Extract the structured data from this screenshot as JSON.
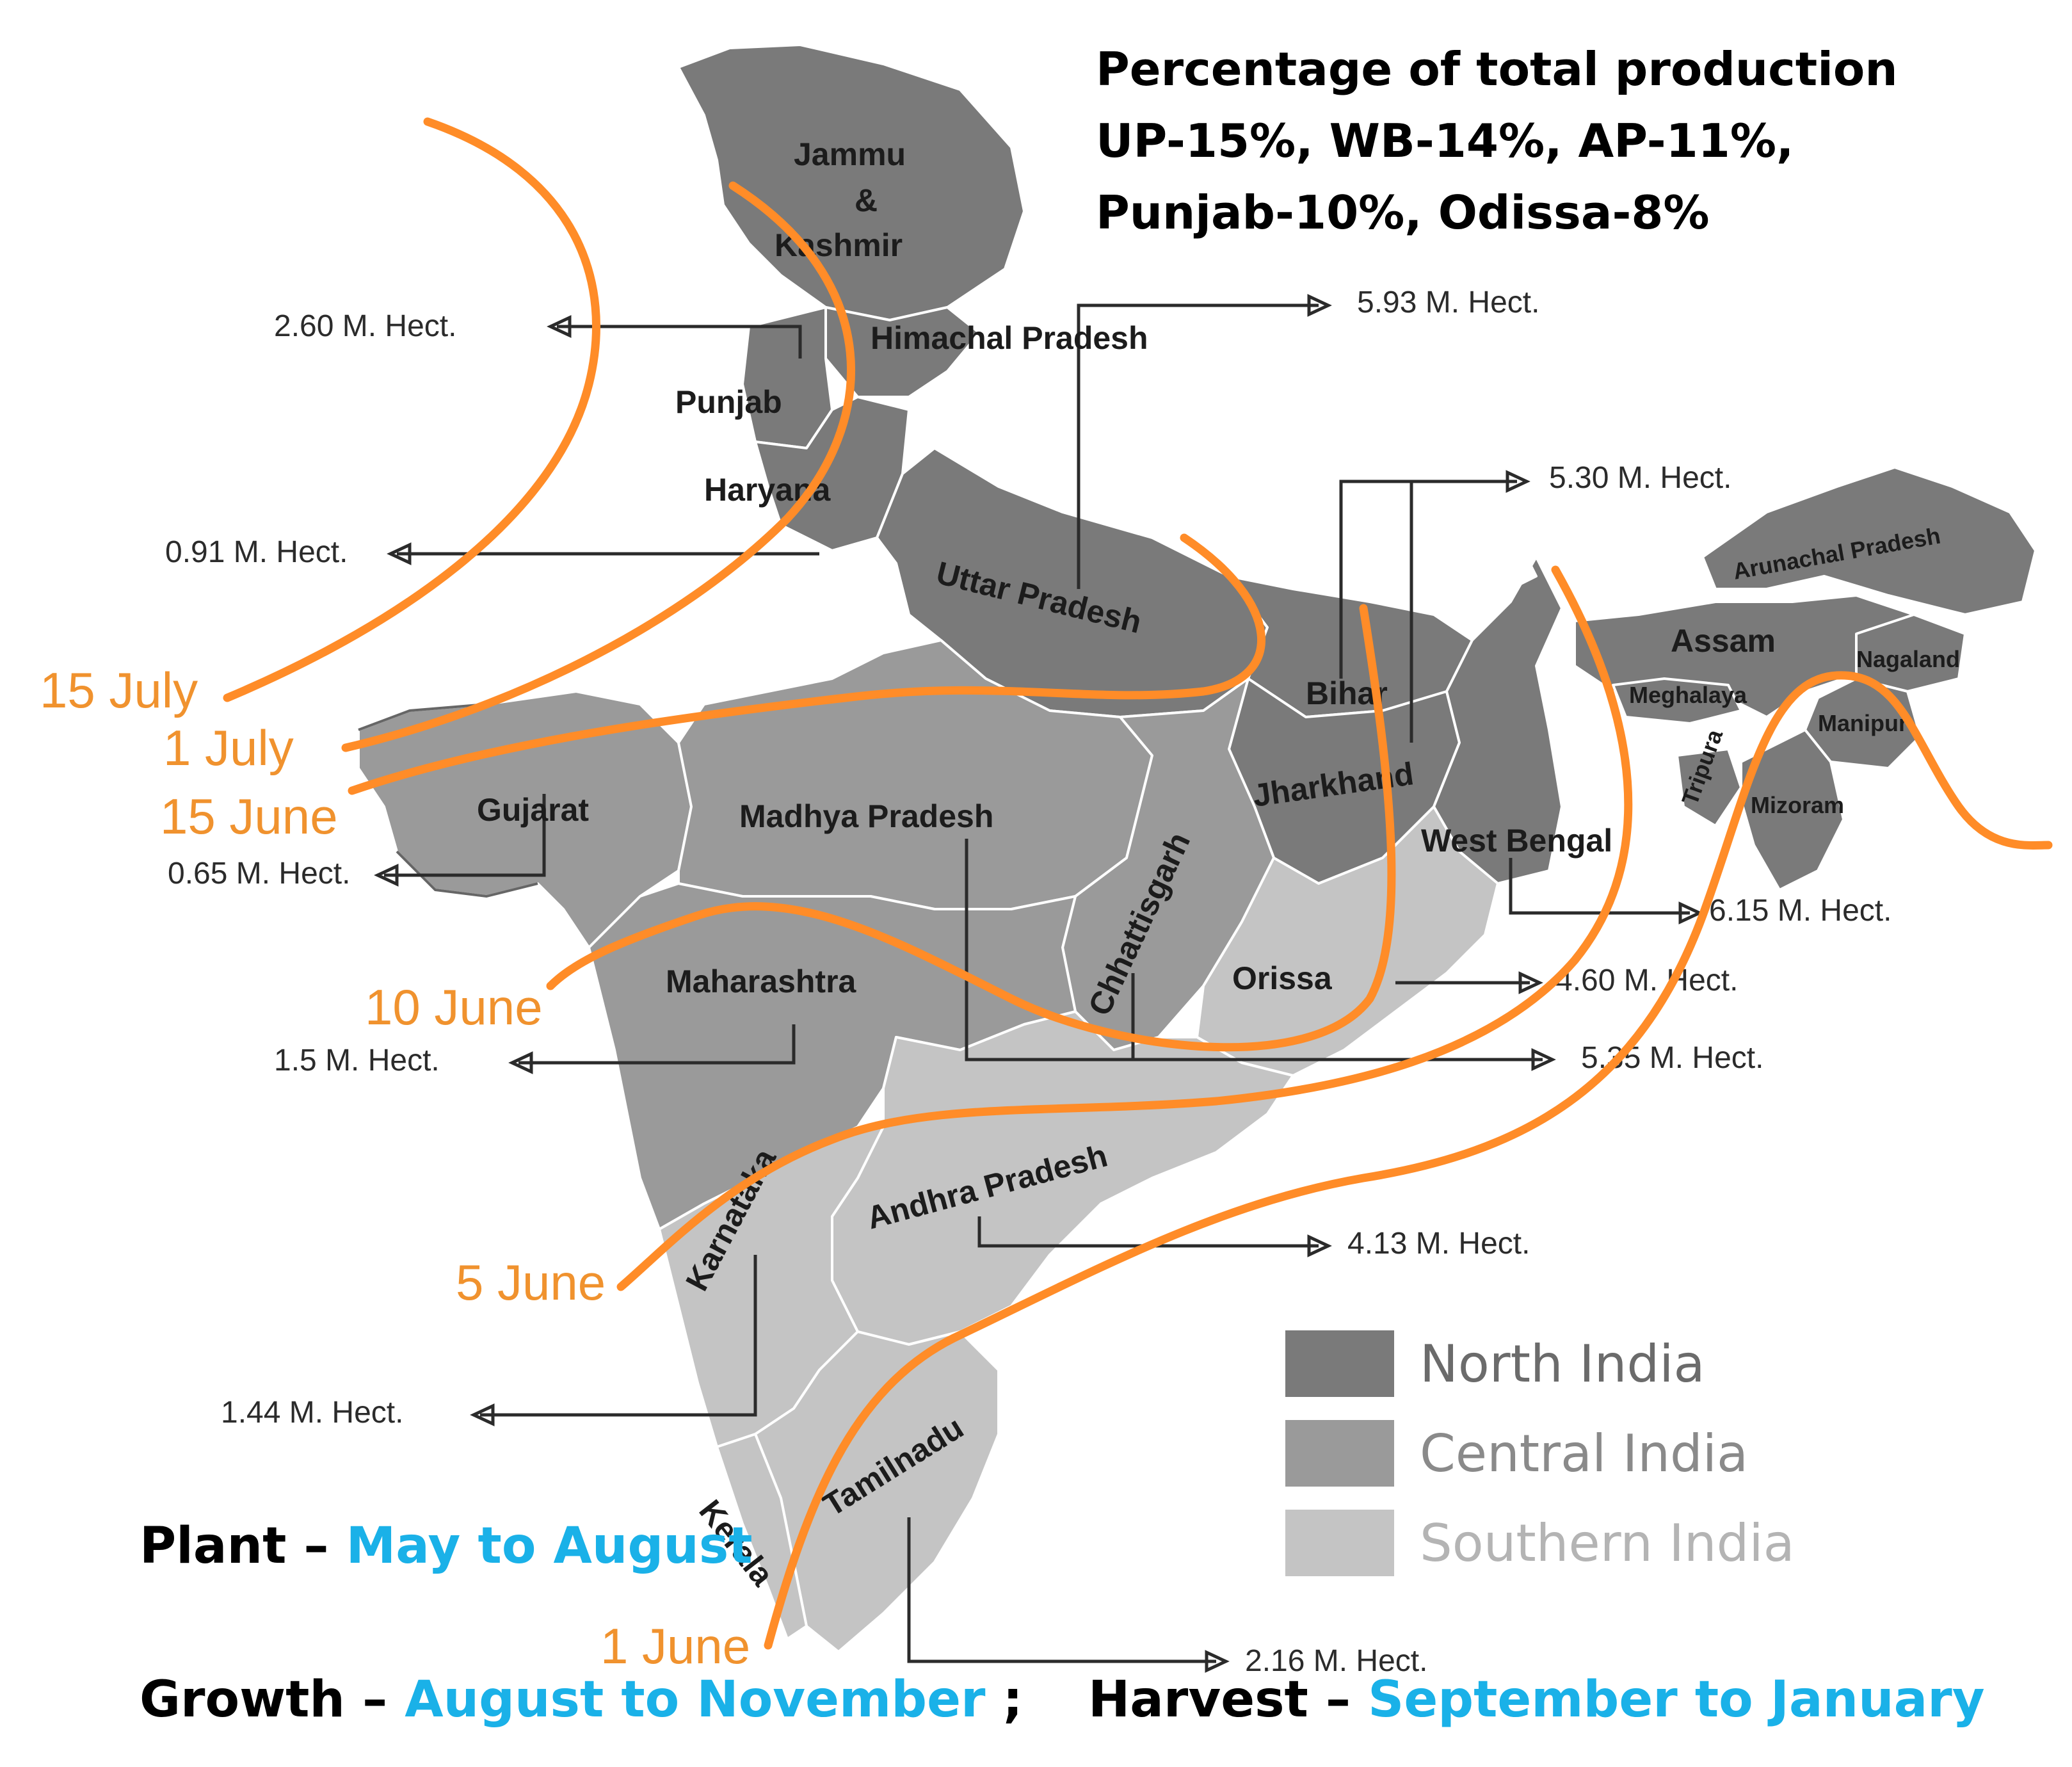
{
  "production_note": {
    "lines": [
      "Percentage of total production",
      "UP-15%, WB-14%, AP-11%,",
      "Punjab-10%,  Odissa-8%"
    ]
  },
  "states": {
    "jammu_kashmir_line1": "Jammu",
    "jammu_kashmir_line2": "&",
    "jammu_kashmir_line3": "Kashmir",
    "himachal": "Himachal Pradesh",
    "punjab": "Punjab",
    "haryana": "Haryana",
    "uttar_pradesh": "Uttar Pradesh",
    "bihar": "Bihar",
    "jharkhand": "Jharkhand",
    "west_bengal": "West Bengal",
    "orissa": "Orissa",
    "chhattisgarh": "Chhattisgarh",
    "madhya_pradesh": "Madhya Pradesh",
    "gujarat": "Gujarat",
    "maharashtra": "Maharashtra",
    "andhra_pradesh": "Andhra Pradesh",
    "karnataka": "Karnataka",
    "tamilnadu": "Tamilnadu",
    "kerala": "Kerala",
    "assam": "Assam",
    "arunachal": "Arunachal Pradesh",
    "meghalaya": "Meghalaya",
    "nagaland": "Nagaland",
    "manipur": "Manipur",
    "mizoram": "Mizoram",
    "tripura": "Tripura"
  },
  "hectares": {
    "punjab": "2.60 M. Hect.",
    "haryana": "0.91 M. Hect.",
    "gujarat": "0.65 M. Hect.",
    "maharashtra": "1.5 M. Hect.",
    "karnataka": "1.44 M. Hect.",
    "uttar_pradesh": "5.93 M. Hect.",
    "bihar_jharkhand": "5.30 M. Hect.",
    "west_bengal": "6.15 M. Hect.",
    "orissa": "4.60 M. Hect.",
    "madhya_pradesh_chhattisgarh": "5.35 M. Hect.",
    "andhra_pradesh": "4.13 M. Hect.",
    "tamilnadu": "2.16 M. Hect."
  },
  "monsoon_onset": {
    "jul15": "15 July",
    "jul1": "1 July",
    "jun15": "15 June",
    "jun10": "10 June",
    "jun5": "5 June",
    "jun1": "1 June"
  },
  "legend": [
    {
      "label": "North India",
      "color": "#7a7a7a"
    },
    {
      "label": "Central India",
      "color": "#9a9a9a"
    },
    {
      "label": "Southern India",
      "color": "#c4c4c4"
    }
  ],
  "seasons": {
    "plant_label": "Plant",
    "plant_sep": " – ",
    "plant_value": "May to August",
    "growth_label": "Growth",
    "growth_sep": " – ",
    "growth_value": "August to November",
    "growth_end": " ;",
    "harvest_label": "Harvest",
    "harvest_sep": " – ",
    "harvest_value": "September to January"
  },
  "colors": {
    "north": "#7a7a7a",
    "central": "#9a9a9a",
    "southern": "#c4c4c4",
    "onset_line": "#ff8c28",
    "onset_text": "#f0922e",
    "season_value": "#1ab1e8"
  }
}
